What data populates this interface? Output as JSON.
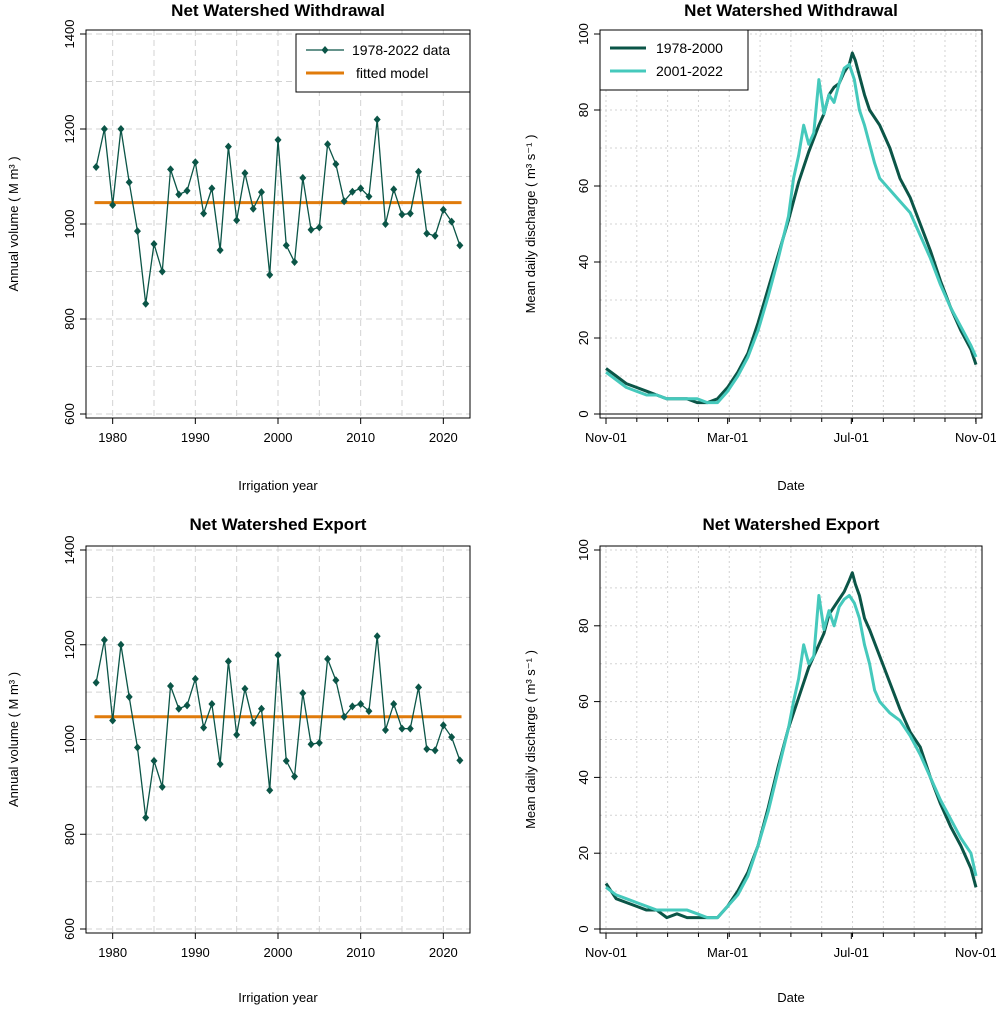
{
  "colors": {
    "dark_teal": "#0b5547",
    "light_teal": "#45c9bc",
    "orange": "#e07b0b",
    "axis_zero": "#000000"
  },
  "chart_data": [
    {
      "id": "tl",
      "type": "line",
      "title": "Net Watershed Withdrawal",
      "xlabel": "Irrigation year",
      "ylabel": "Annual volume ( M m³ )",
      "xlim": [
        1977.5,
        2022.5
      ],
      "ylim": [
        600,
        1400
      ],
      "xticks": [
        1980,
        1990,
        2000,
        2010,
        2020
      ],
      "yticks": [
        600,
        800,
        1000,
        1200,
        1400
      ],
      "x": [
        1978,
        1979,
        1980,
        1981,
        1982,
        1983,
        1984,
        1985,
        1986,
        1987,
        1988,
        1989,
        1990,
        1991,
        1992,
        1993,
        1994,
        1995,
        1996,
        1997,
        1998,
        1999,
        2000,
        2001,
        2002,
        2003,
        2004,
        2005,
        2006,
        2007,
        2008,
        2009,
        2010,
        2011,
        2012,
        2013,
        2014,
        2015,
        2016,
        2017,
        2018,
        2019,
        2020,
        2021,
        2022
      ],
      "series": [
        {
          "name": "1978-2022 data",
          "values": [
            1120,
            1200,
            1040,
            1200,
            1088,
            985,
            832,
            958,
            900,
            1115,
            1062,
            1070,
            1130,
            1022,
            1075,
            945,
            1163,
            1008,
            1107,
            1032,
            1067,
            893,
            1177,
            955,
            920,
            1097,
            988,
            993,
            1168,
            1126,
            1048,
            1068,
            1075,
            1058,
            1220,
            1000,
            1073,
            1020,
            1022,
            1110,
            980,
            975,
            1030,
            1005,
            955
          ]
        }
      ],
      "fitted_model": {
        "name": "fitted model",
        "value": 1045
      },
      "legend": [
        "1978-2022 data",
        "fitted model"
      ],
      "legend_position": "top-right"
    },
    {
      "id": "tr",
      "type": "line",
      "title": "Net Watershed Withdrawal",
      "xlabel": "Date",
      "ylabel": "Mean daily discharge ( m³ s⁻¹ )",
      "xlim": [
        0,
        365
      ],
      "ylim": [
        0,
        100
      ],
      "xticks": [
        0,
        120,
        242,
        365
      ],
      "xticklabels": [
        "Nov-01",
        "Mar-01",
        "Jul-01",
        "Nov-01"
      ],
      "yticks": [
        0,
        20,
        40,
        60,
        80,
        100
      ],
      "series": [
        {
          "name": "1978-2000",
          "color": "dark",
          "x": [
            0,
            10,
            20,
            30,
            40,
            50,
            60,
            70,
            80,
            90,
            100,
            110,
            120,
            130,
            140,
            150,
            160,
            170,
            180,
            190,
            200,
            210,
            215,
            220,
            225,
            230,
            235,
            240,
            243,
            246,
            250,
            255,
            260,
            270,
            280,
            290,
            300,
            310,
            320,
            330,
            340,
            350,
            360,
            365
          ],
          "y": [
            12,
            10,
            8,
            7,
            6,
            5,
            4,
            4,
            4,
            3,
            3,
            4,
            7,
            11,
            16,
            24,
            33,
            42,
            51,
            61,
            69,
            76,
            79,
            84,
            86,
            87,
            90,
            92,
            95,
            93,
            89,
            84,
            80,
            76,
            70,
            62,
            57,
            50,
            43,
            35,
            28,
            22,
            17,
            13
          ]
        },
        {
          "name": "2001-2022",
          "color": "light",
          "x": [
            0,
            10,
            20,
            30,
            40,
            50,
            60,
            70,
            80,
            90,
            100,
            110,
            120,
            130,
            140,
            150,
            160,
            170,
            180,
            185,
            190,
            195,
            200,
            205,
            210,
            215,
            220,
            225,
            230,
            235,
            240,
            245,
            250,
            255,
            260,
            265,
            270,
            280,
            290,
            300,
            310,
            320,
            330,
            340,
            350,
            360,
            365
          ],
          "y": [
            11,
            9,
            7,
            6,
            5,
            5,
            4,
            4,
            4,
            4,
            3,
            3,
            6,
            10,
            15,
            22,
            31,
            41,
            52,
            62,
            68,
            76,
            71,
            74,
            88,
            79,
            84,
            82,
            87,
            91,
            92,
            88,
            80,
            76,
            71,
            66,
            62,
            59,
            56,
            53,
            47,
            41,
            34,
            28,
            23,
            18,
            15
          ]
        }
      ],
      "legend": [
        "1978-2000",
        "2001-2022"
      ],
      "legend_position": "top-left"
    },
    {
      "id": "bl",
      "type": "line",
      "title": "Net Watershed Export",
      "xlabel": "Irrigation year",
      "ylabel": "Annual volume ( M m³ )",
      "xlim": [
        1977.5,
        2022.5
      ],
      "ylim": [
        600,
        1400
      ],
      "xticks": [
        1980,
        1990,
        2000,
        2010,
        2020
      ],
      "yticks": [
        600,
        800,
        1000,
        1200,
        1400
      ],
      "x": [
        1978,
        1979,
        1980,
        1981,
        1982,
        1983,
        1984,
        1985,
        1986,
        1987,
        1988,
        1989,
        1990,
        1991,
        1992,
        1993,
        1994,
        1995,
        1996,
        1997,
        1998,
        1999,
        2000,
        2001,
        2002,
        2003,
        2004,
        2005,
        2006,
        2007,
        2008,
        2009,
        2010,
        2011,
        2012,
        2013,
        2014,
        2015,
        2016,
        2017,
        2018,
        2019,
        2020,
        2021,
        2022
      ],
      "series": [
        {
          "name": "data",
          "values": [
            1120,
            1210,
            1040,
            1200,
            1090,
            983,
            835,
            955,
            900,
            1113,
            1065,
            1072,
            1128,
            1025,
            1075,
            948,
            1165,
            1010,
            1107,
            1035,
            1065,
            893,
            1178,
            955,
            922,
            1098,
            990,
            993,
            1170,
            1125,
            1048,
            1070,
            1075,
            1060,
            1218,
            1020,
            1075,
            1023,
            1023,
            1110,
            980,
            977,
            1030,
            1005,
            956
          ]
        }
      ],
      "fitted_model": {
        "name": "fitted model",
        "value": 1048
      }
    },
    {
      "id": "br",
      "type": "line",
      "title": "Net Watershed Export",
      "xlabel": "Date",
      "ylabel": "Mean daily discharge ( m³ s⁻¹ )",
      "xlim": [
        0,
        365
      ],
      "ylim": [
        0,
        100
      ],
      "xticks": [
        0,
        120,
        242,
        365
      ],
      "xticklabels": [
        "Nov-01",
        "Mar-01",
        "Jul-01",
        "Nov-01"
      ],
      "yticks": [
        0,
        20,
        40,
        60,
        80,
        100
      ],
      "series": [
        {
          "name": "1978-2000",
          "color": "dark",
          "x": [
            0,
            10,
            20,
            30,
            40,
            50,
            60,
            70,
            80,
            90,
            100,
            110,
            120,
            130,
            140,
            150,
            160,
            170,
            180,
            190,
            200,
            210,
            215,
            220,
            225,
            230,
            235,
            240,
            243,
            246,
            250,
            255,
            260,
            270,
            280,
            290,
            300,
            310,
            320,
            330,
            340,
            350,
            360,
            365
          ],
          "y": [
            12,
            8,
            7,
            6,
            5,
            5,
            3,
            4,
            3,
            3,
            3,
            3,
            6,
            10,
            15,
            22,
            32,
            43,
            53,
            61,
            69,
            75,
            78,
            83,
            85,
            87,
            89,
            92,
            94,
            91,
            88,
            82,
            79,
            72,
            65,
            58,
            52,
            48,
            40,
            33,
            27,
            22,
            16,
            11
          ]
        },
        {
          "name": "2001-2022",
          "color": "light",
          "x": [
            0,
            10,
            20,
            30,
            40,
            50,
            60,
            70,
            80,
            90,
            100,
            110,
            120,
            130,
            140,
            150,
            160,
            170,
            180,
            185,
            190,
            195,
            200,
            205,
            210,
            215,
            220,
            225,
            230,
            235,
            240,
            245,
            250,
            255,
            260,
            265,
            270,
            280,
            290,
            300,
            310,
            320,
            330,
            340,
            350,
            360,
            365
          ],
          "y": [
            11,
            9,
            8,
            7,
            6,
            5,
            5,
            5,
            5,
            4,
            3,
            3,
            6,
            9,
            14,
            22,
            31,
            42,
            53,
            60,
            66,
            75,
            70,
            72,
            88,
            79,
            84,
            80,
            85,
            87,
            88,
            86,
            82,
            75,
            70,
            63,
            60,
            57,
            55,
            51,
            46,
            40,
            34,
            29,
            24,
            20,
            14
          ]
        }
      ]
    }
  ]
}
